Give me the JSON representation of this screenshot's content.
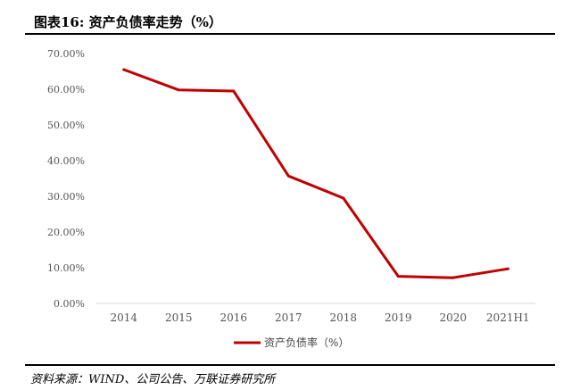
{
  "figure": {
    "title": "图表16:  资产负债率走势（%）",
    "source": "资料来源：WIND、公司公告、万联证券研究所"
  },
  "chart_data": {
    "type": "line",
    "title": "",
    "xlabel": "",
    "ylabel": "",
    "categories": [
      "2014",
      "2015",
      "2016",
      "2017",
      "2018",
      "2019",
      "2020",
      "2021H1"
    ],
    "y_ticks": [
      "0.00%",
      "10.00%",
      "20.00%",
      "30.00%",
      "40.00%",
      "50.00%",
      "60.00%",
      "70.00%"
    ],
    "ylim": [
      0,
      70
    ],
    "grid": false,
    "legend": "bottom",
    "colors": {
      "series": "#C00000"
    },
    "series": [
      {
        "name": "资产负债率（%）",
        "values": [
          65.5,
          59.8,
          59.5,
          35.7,
          29.5,
          7.6,
          7.2,
          9.7
        ]
      }
    ]
  }
}
